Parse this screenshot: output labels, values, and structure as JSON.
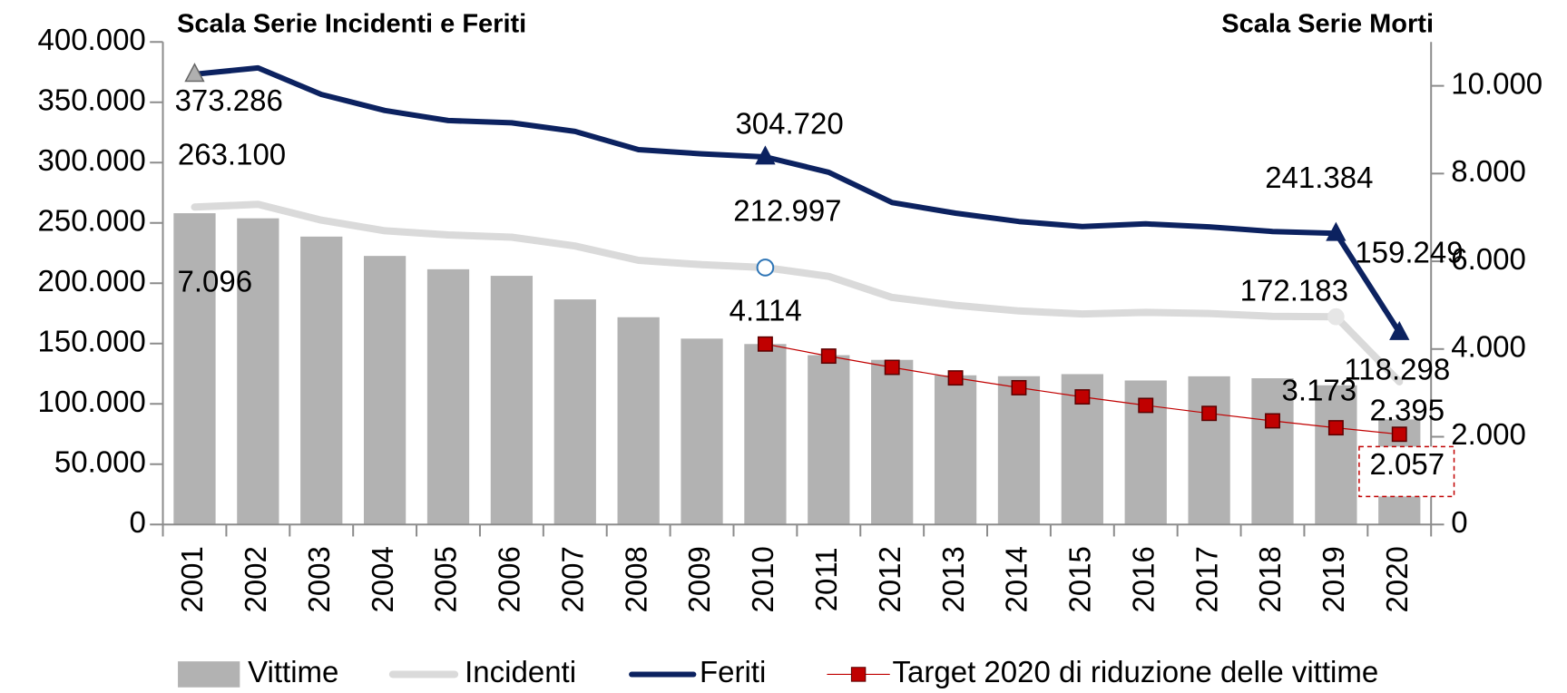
{
  "chart_data": {
    "type": "combo",
    "y_axis_title": "Scala Serie Incidenti e Feriti",
    "y2_axis_title": "Scala Serie Morti",
    "categories": [
      "2001",
      "2002",
      "2003",
      "2004",
      "2005",
      "2006",
      "2007",
      "2008",
      "2009",
      "2010",
      "2011",
      "2012",
      "2013",
      "2014",
      "2015",
      "2016",
      "2017",
      "2018",
      "2019",
      "2020"
    ],
    "ylim": [
      0,
      400000
    ],
    "yticks": [
      0,
      {
        "value": 50000,
        "label": "50.000"
      },
      {
        "value": 100000,
        "label": "100.000"
      },
      {
        "value": 150000,
        "label": "150.000"
      },
      {
        "value": 200000,
        "label": "200.000"
      },
      {
        "value": 250000,
        "label": "250.000"
      },
      {
        "value": 300000,
        "label": "300.000"
      },
      {
        "value": 350000,
        "label": "350.000"
      },
      {
        "value": 400000,
        "label": "400.000"
      }
    ],
    "y2lim": [
      0,
      11000
    ],
    "y2ticks": [
      0,
      {
        "value": 2000,
        "label": "2.000"
      },
      {
        "value": 4000,
        "label": "4.000"
      },
      {
        "value": 6000,
        "label": "6.000"
      },
      {
        "value": 8000,
        "label": "8.000"
      },
      {
        "value": 10000,
        "label": "10.000"
      }
    ],
    "series": [
      {
        "name": "Vittime",
        "type": "bar",
        "axis": "y2",
        "color": "#b2b2b2",
        "values": [
          7096,
          6980,
          6563,
          6122,
          5818,
          5669,
          5131,
          4725,
          4237,
          4114,
          3860,
          3753,
          3401,
          3381,
          3428,
          3283,
          3378,
          3334,
          3173,
          2395
        ],
        "value_labels": [
          "7.096",
          null,
          null,
          null,
          null,
          null,
          null,
          null,
          null,
          null,
          null,
          null,
          null,
          null,
          null,
          null,
          null,
          null,
          "3.173",
          "2.395"
        ]
      },
      {
        "name": "Incidenti",
        "type": "line",
        "color": "#dadada",
        "values": [
          263100,
          265402,
          252271,
          243490,
          240011,
          238124,
          230871,
          218963,
          215405,
          212997,
          205638,
          188228,
          181660,
          177031,
          174539,
          175791,
          174933,
          172553,
          172183,
          118298
        ],
        "value_labels": [
          "263.100",
          null,
          null,
          null,
          null,
          null,
          null,
          null,
          null,
          "212.997",
          null,
          null,
          null,
          null,
          null,
          null,
          null,
          null,
          "172.183",
          "118.298"
        ]
      },
      {
        "name": "Feriti",
        "type": "line",
        "color": "#0c2260",
        "values": [
          373286,
          378492,
          356475,
          343179,
          334858,
          332955,
          325850,
          310745,
          307258,
          304720,
          292019,
          266864,
          258093,
          251147,
          246920,
          249175,
          246750,
          242919,
          241384,
          159249
        ],
        "value_labels": [
          "373.286",
          null,
          null,
          null,
          null,
          null,
          null,
          null,
          null,
          "304.720",
          null,
          null,
          null,
          null,
          null,
          null,
          null,
          null,
          "241.384",
          "159.249"
        ]
      },
      {
        "name": "Target 2020 di riduzione delle vittime",
        "type": "line",
        "axis": "y2",
        "color": "#c00000",
        "values": [
          null,
          null,
          null,
          null,
          null,
          null,
          null,
          null,
          null,
          4114,
          3839,
          3582,
          3342,
          3118,
          2909,
          2715,
          2533,
          2363,
          2205,
          2057
        ],
        "value_labels": [
          null,
          null,
          null,
          null,
          null,
          null,
          null,
          null,
          null,
          "4.114",
          null,
          null,
          null,
          null,
          null,
          null,
          null,
          null,
          null,
          "2.057"
        ]
      }
    ]
  }
}
